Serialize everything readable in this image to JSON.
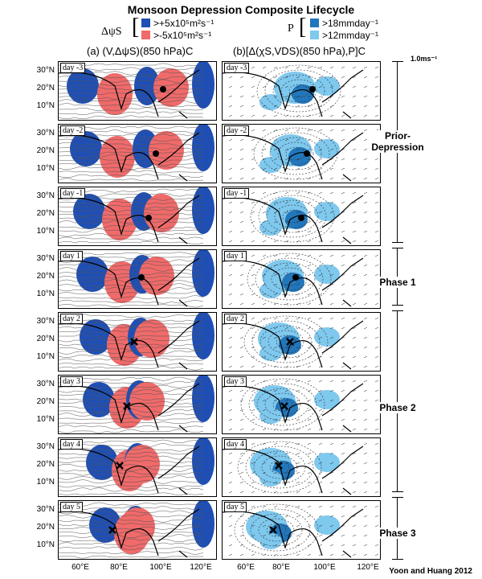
{
  "title": "Monsoon Depression Composite Lifecycle",
  "legend": {
    "stream_symbol": "ΔψS",
    "stream_pos": ">+5x10⁵m²s⁻¹",
    "stream_neg": ">-5x10⁵m²s⁻¹",
    "precip_symbol": "P",
    "precip_high": ">18mmday⁻¹",
    "precip_low": ">12mmday⁻¹",
    "colors": {
      "pos": "#1f4fb4",
      "neg": "#f06a6a",
      "p_high": "#2277bb",
      "p_low": "#7fc8ee"
    }
  },
  "columns": {
    "a": "(a) (V,ΔψS)(850 hPa)C",
    "b": "(b)[Δ(χS,VDS)(850 hPa),P]C"
  },
  "scale_label": "1.0ms⁻¹",
  "rows": [
    {
      "day": "day -3",
      "marker": "dot"
    },
    {
      "day": "day -2",
      "marker": "dot"
    },
    {
      "day": "day -1",
      "marker": "dot"
    },
    {
      "day": "day 1",
      "marker": "dot"
    },
    {
      "day": "day 2",
      "marker": "x"
    },
    {
      "day": "day 3",
      "marker": "x"
    },
    {
      "day": "day 4",
      "marker": "x"
    },
    {
      "day": "day 5",
      "marker": "x"
    }
  ],
  "lat_labels": [
    "30°N",
    "20°N",
    "10°N"
  ],
  "lon_labels": [
    "60°E",
    "80°E",
    "100°E",
    "120°E"
  ],
  "phases": [
    {
      "label": "Prior-\nDepression"
    },
    {
      "label": "Phase 1"
    },
    {
      "label": "Phase 2"
    },
    {
      "label": "Phase 3"
    }
  ],
  "credit": "Yoon and Huang 2012"
}
